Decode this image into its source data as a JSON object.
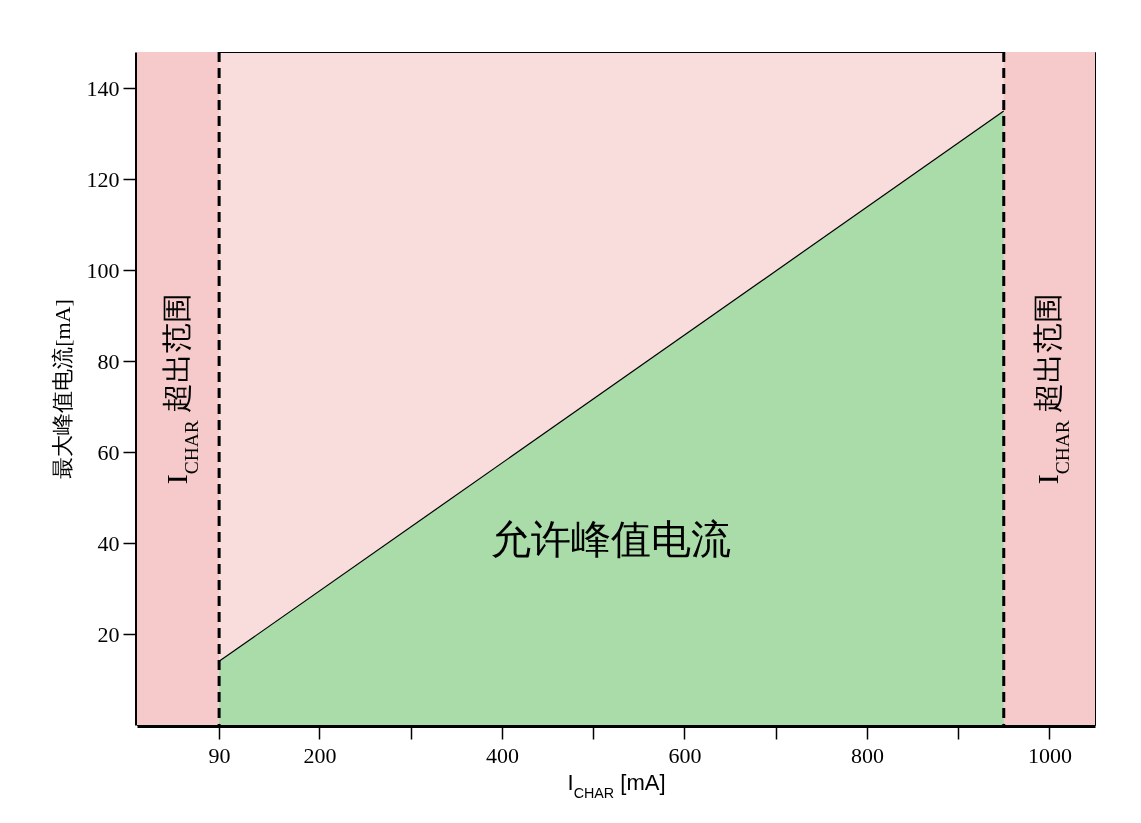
{
  "chart_data": {
    "type": "area",
    "xlabel": "I$_{CHAR}$ [mA]",
    "ylabel": "最大峰值电流[mA]",
    "xlim": [
      0,
      1050
    ],
    "ylim": [
      0,
      148
    ],
    "xticks": [
      90,
      200,
      {
        "value": 300,
        "label": null
      },
      400,
      {
        "value": 500,
        "label": null
      },
      600,
      {
        "value": 700,
        "label": null
      },
      800,
      {
        "value": 900,
        "label": null
      },
      1000
    ],
    "yticks": [
      20,
      40,
      60,
      80,
      100,
      120,
      140
    ],
    "series": [
      {
        "name": "允许峰值电流",
        "color": "#a9dca9",
        "x": [
          90,
          950
        ],
        "values": [
          14,
          135
        ]
      }
    ],
    "ref_lines": [
      {
        "axis": "x",
        "value": 90,
        "line_style": "dashed",
        "color": "#000000"
      },
      {
        "axis": "x",
        "value": 950,
        "line_style": "dashed",
        "color": "#000000"
      }
    ],
    "bands": [
      {
        "axis": "x",
        "from": 0,
        "to": 90,
        "label": "I$_{CHAR}$ 超出范围",
        "color": "#f6caca"
      },
      {
        "axis": "x",
        "from": 950,
        "to": 1050,
        "label": "I$_{CHAR}$ 超出范围",
        "color": "#f6caca"
      }
    ]
  }
}
